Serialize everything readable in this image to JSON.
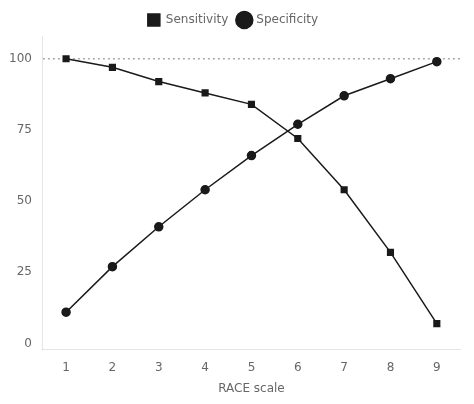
{
  "chart_data": {
    "type": "line",
    "xlabel": "RACE scale",
    "x": [
      1,
      2,
      3,
      4,
      5,
      6,
      7,
      8,
      9
    ],
    "series": [
      {
        "name": "Sensitivity",
        "color": "#1a1a1a",
        "marker": "square",
        "values": [
          100,
          97,
          92,
          88,
          84,
          72,
          54,
          32,
          7
        ]
      },
      {
        "name": "Specificity",
        "color": "#1a1a1a",
        "marker": "circle",
        "values": [
          11,
          27,
          41,
          54,
          66,
          77,
          87,
          93,
          99
        ]
      }
    ],
    "xlim": [
      0.5,
      9.5
    ],
    "ylim": [
      -2,
      108
    ],
    "xticks": [
      1,
      2,
      3,
      4,
      5,
      6,
      7,
      8,
      9
    ],
    "yticks": [
      0,
      25,
      50,
      75,
      100
    ],
    "grid": false,
    "legend": "top",
    "reference_line": {
      "y": 100,
      "color": "#aaaaaa",
      "line_style": "dotted"
    }
  }
}
